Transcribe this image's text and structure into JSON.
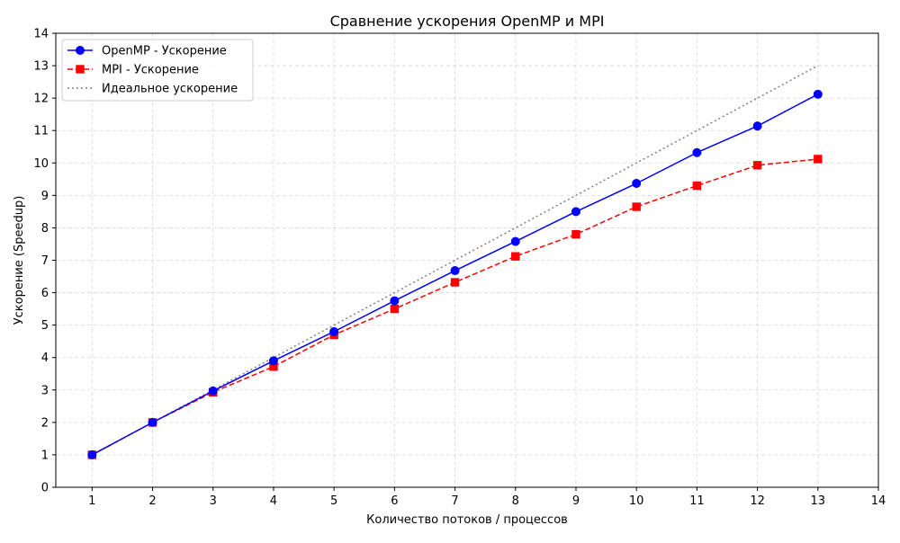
{
  "chart_data": {
    "type": "line",
    "title": "Сравнение ускорения OpenMP и MPI",
    "xlabel": "Количество потоков / процессов",
    "ylabel": "Ускорение (Speedup)",
    "xlim": [
      0.4,
      14
    ],
    "ylim": [
      0,
      14
    ],
    "x_ticks": [
      1,
      2,
      3,
      4,
      5,
      6,
      7,
      8,
      9,
      10,
      11,
      12,
      13,
      14
    ],
    "y_ticks": [
      0,
      1,
      2,
      3,
      4,
      5,
      6,
      7,
      8,
      9,
      10,
      11,
      12,
      13,
      14
    ],
    "grid": true,
    "legend_position": "top-left",
    "series": [
      {
        "name": "OpenMP - Ускорение",
        "color": "#0000ff",
        "line_style": "solid",
        "marker": "circle",
        "x": [
          1,
          2,
          3,
          4,
          5,
          6,
          7,
          8,
          9,
          10,
          11,
          12,
          13
        ],
        "y": [
          1.0,
          2.0,
          2.97,
          3.9,
          4.8,
          5.75,
          6.68,
          7.58,
          8.5,
          9.37,
          10.32,
          11.14,
          12.12
        ]
      },
      {
        "name": "MPI - Ускорение",
        "color": "#ff0000",
        "line_style": "dashed",
        "marker": "square",
        "x": [
          1,
          2,
          3,
          4,
          5,
          6,
          7,
          8,
          9,
          10,
          11,
          12,
          13
        ],
        "y": [
          1.0,
          2.0,
          2.93,
          3.72,
          4.7,
          5.5,
          6.32,
          7.12,
          7.8,
          8.65,
          9.3,
          9.93,
          10.12
        ]
      },
      {
        "name": "Идеальное ускорение",
        "color": "#808080",
        "line_style": "dotted",
        "marker": "none",
        "x": [
          1,
          13
        ],
        "y": [
          1,
          13
        ]
      }
    ]
  }
}
